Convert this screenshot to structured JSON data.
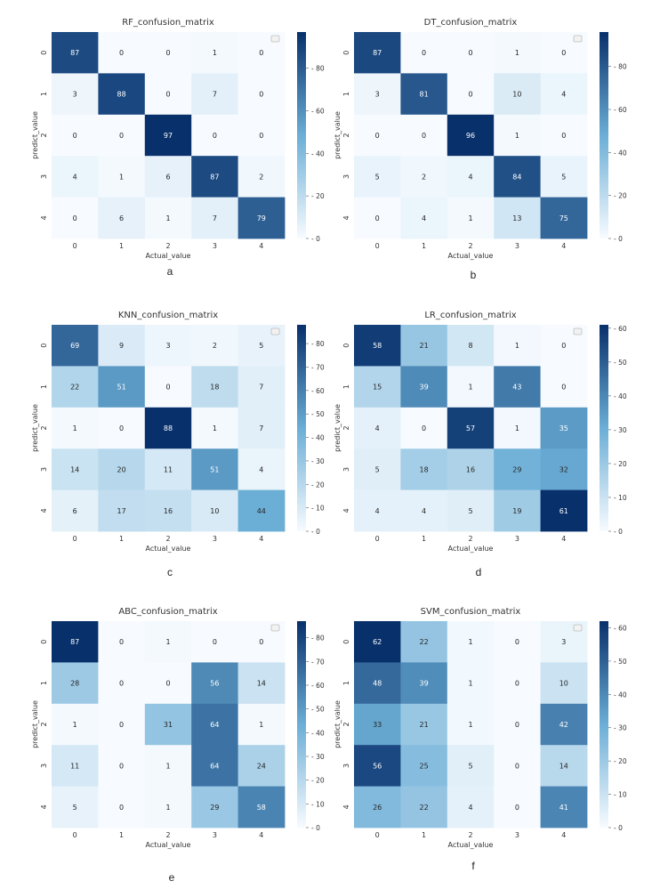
{
  "figure": {
    "colormap": {
      "low": "#f7fbff",
      "mid": "#6baed6",
      "high": "#08306b"
    },
    "panels": [
      {
        "letter": "a",
        "chart_data": {
          "type": "heatmap",
          "title": "RF_confusion_matrix",
          "xlabel": "Actual_value",
          "ylabel": "predict_value",
          "x_ticks": [
            "0",
            "1",
            "2",
            "3",
            "4"
          ],
          "y_ticks": [
            "0",
            "1",
            "2",
            "3",
            "4"
          ],
          "values": [
            [
              87,
              0,
              0,
              1,
              0
            ],
            [
              3,
              88,
              0,
              7,
              0
            ],
            [
              0,
              0,
              97,
              0,
              0
            ],
            [
              4,
              1,
              6,
              87,
              2
            ],
            [
              0,
              6,
              1,
              7,
              79
            ]
          ],
          "vmax": 97,
          "colorbar_ticks": [
            0,
            20,
            40,
            60,
            80
          ]
        }
      },
      {
        "letter": "b",
        "chart_data": {
          "type": "heatmap",
          "title": "DT_confusion_matrix",
          "xlabel": "Actual_value",
          "ylabel": "predict_value",
          "x_ticks": [
            "0",
            "1",
            "2",
            "3",
            "4"
          ],
          "y_ticks": [
            "0",
            "1",
            "2",
            "3",
            "4"
          ],
          "values": [
            [
              87,
              0,
              0,
              1,
              0
            ],
            [
              3,
              81,
              0,
              10,
              4
            ],
            [
              0,
              0,
              96,
              1,
              0
            ],
            [
              5,
              2,
              4,
              84,
              5
            ],
            [
              0,
              4,
              1,
              13,
              75
            ]
          ],
          "vmax": 96,
          "colorbar_ticks": [
            0,
            20,
            40,
            60,
            80
          ]
        }
      },
      {
        "letter": "c",
        "chart_data": {
          "type": "heatmap",
          "title": "KNN_confusion_matrix",
          "xlabel": "Actual_value",
          "ylabel": "predict_value",
          "x_ticks": [
            "0",
            "1",
            "2",
            "3",
            "4"
          ],
          "y_ticks": [
            "0",
            "1",
            "2",
            "3",
            "4"
          ],
          "values": [
            [
              69,
              9,
              3,
              2,
              5
            ],
            [
              22,
              51,
              0,
              18,
              7
            ],
            [
              1,
              0,
              88,
              1,
              7
            ],
            [
              14,
              20,
              11,
              51,
              4
            ],
            [
              6,
              17,
              16,
              10,
              44
            ]
          ],
          "vmax": 88,
          "colorbar_ticks": [
            0,
            10,
            20,
            30,
            40,
            50,
            60,
            70,
            80
          ]
        }
      },
      {
        "letter": "d",
        "chart_data": {
          "type": "heatmap",
          "title": "LR_confusion_matrix",
          "xlabel": "Actual_value",
          "ylabel": "predict_value",
          "x_ticks": [
            "0",
            "1",
            "2",
            "3",
            "4"
          ],
          "y_ticks": [
            "0",
            "1",
            "2",
            "3",
            "4"
          ],
          "values": [
            [
              58,
              21,
              8,
              1,
              0
            ],
            [
              15,
              39,
              1,
              43,
              0
            ],
            [
              4,
              0,
              57,
              1,
              35
            ],
            [
              5,
              18,
              16,
              29,
              32
            ],
            [
              4,
              4,
              5,
              19,
              61
            ]
          ],
          "vmax": 61,
          "colorbar_ticks": [
            0,
            10,
            20,
            30,
            40,
            50,
            60
          ]
        }
      },
      {
        "letter": "e",
        "chart_data": {
          "type": "heatmap",
          "title": "ABC_confusion_matrix",
          "xlabel": "Actual_value",
          "ylabel": "predict_value",
          "x_ticks": [
            "0",
            "1",
            "2",
            "3",
            "4"
          ],
          "y_ticks": [
            "0",
            "1",
            "2",
            "3",
            "4"
          ],
          "values": [
            [
              87,
              0,
              1,
              0,
              0
            ],
            [
              28,
              0,
              0,
              56,
              14
            ],
            [
              1,
              0,
              31,
              64,
              1
            ],
            [
              11,
              0,
              1,
              64,
              24
            ],
            [
              5,
              0,
              1,
              29,
              58
            ]
          ],
          "vmax": 87,
          "colorbar_ticks": [
            0,
            10,
            20,
            30,
            40,
            50,
            60,
            70,
            80
          ]
        }
      },
      {
        "letter": "f",
        "chart_data": {
          "type": "heatmap",
          "title": "SVM_confusion_matrix",
          "xlabel": "Actual_value",
          "ylabel": "predict_value",
          "x_ticks": [
            "0",
            "1",
            "2",
            "3",
            "4"
          ],
          "y_ticks": [
            "0",
            "1",
            "2",
            "3",
            "4"
          ],
          "values": [
            [
              62,
              22,
              1,
              0,
              3
            ],
            [
              48,
              39,
              1,
              0,
              10
            ],
            [
              33,
              21,
              1,
              0,
              42
            ],
            [
              56,
              25,
              5,
              0,
              14
            ],
            [
              26,
              22,
              4,
              0,
              41
            ]
          ],
          "vmax": 62,
          "colorbar_ticks": [
            0,
            10,
            20,
            30,
            40,
            50,
            60
          ]
        }
      }
    ]
  }
}
